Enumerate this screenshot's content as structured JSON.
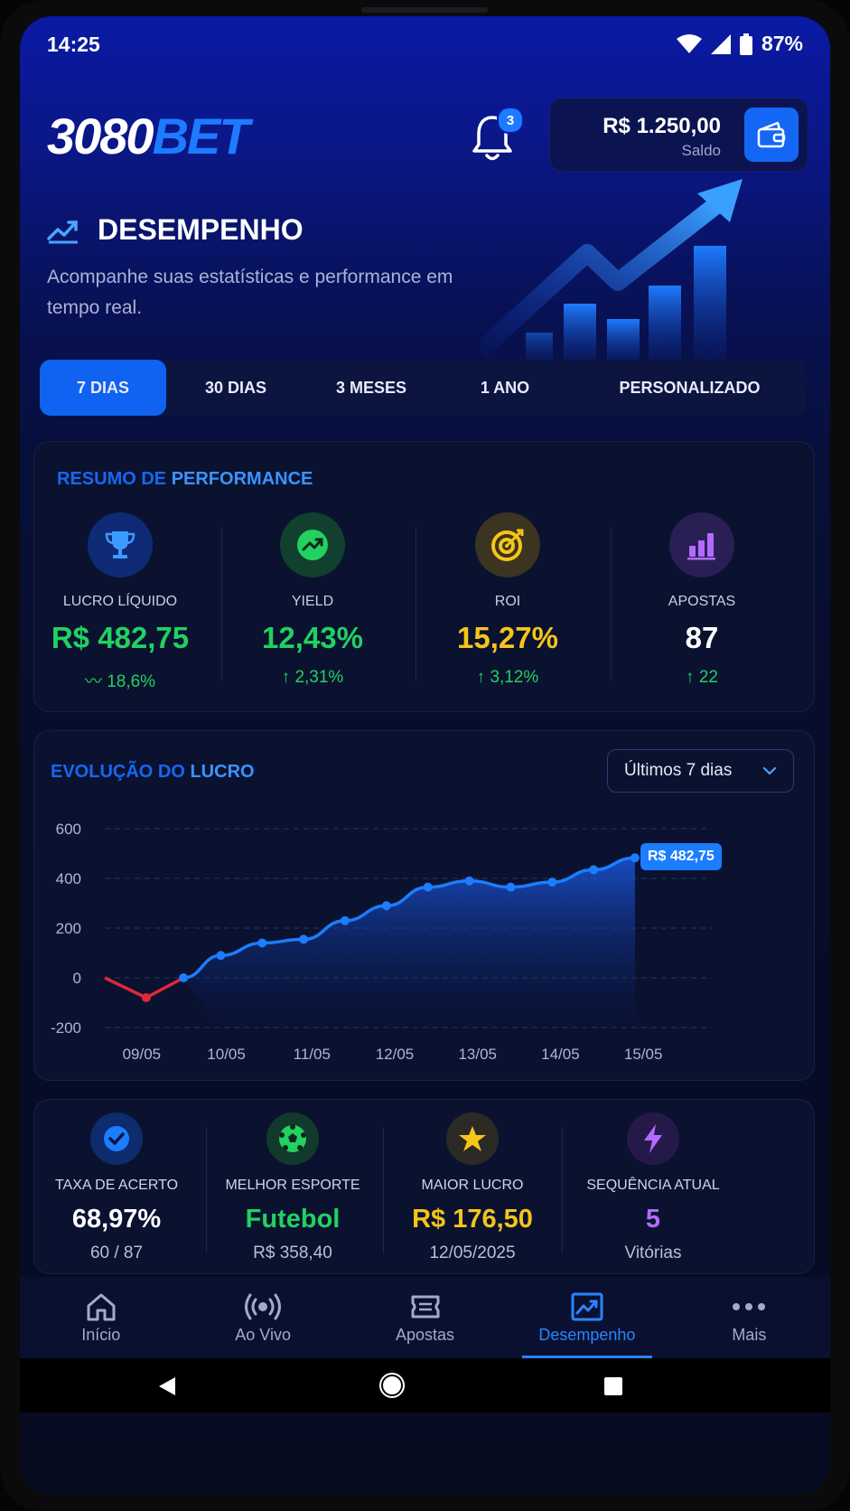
{
  "status_bar": {
    "time": "14:25",
    "battery": "87%"
  },
  "header": {
    "logo_white": "3080",
    "logo_blue": "BET",
    "notifications_count": "3",
    "balance_amount": "R$ 1.250,00",
    "balance_label": "Saldo"
  },
  "hero": {
    "title": "DESEMPENHO",
    "subtitle": "Acompanhe suas estatísticas e performance em tempo real."
  },
  "tabs": [
    {
      "label": "7 DIAS",
      "active": true
    },
    {
      "label": "30 DIAS",
      "active": false
    },
    {
      "label": "3 MESES",
      "active": false
    },
    {
      "label": "1 ANO",
      "active": false
    },
    {
      "label": "PERSONALIZADO",
      "active": false
    }
  ],
  "summary": {
    "title_a": "RESUMO DE",
    "title_b": "PERFORMANCE",
    "items": [
      {
        "label": "LUCRO LÍQUIDO",
        "value": "R$ 482,75",
        "change": "18,6%",
        "value_color": "#22d160",
        "icon": "trophy-icon"
      },
      {
        "label": "YIELD",
        "value": "12,43%",
        "change": "2,31%",
        "value_color": "#22d160",
        "icon": "trend-up-icon"
      },
      {
        "label": "ROI",
        "value": "15,27%",
        "change": "3,12%",
        "value_color": "#f5c518",
        "icon": "target-icon"
      },
      {
        "label": "APOSTAS",
        "value": "87",
        "change": "22",
        "value_color": "#ffffff",
        "icon": "bar-chart-icon"
      }
    ]
  },
  "profit_chart": {
    "title_a": "EVOLUÇÃO DO",
    "title_b": "LUCRO",
    "range_select": "Últimos 7 dias",
    "last_value_label": "R$ 482,75"
  },
  "chart_data": {
    "type": "area",
    "x_tick_labels": [
      "09/05",
      "10/05",
      "11/05",
      "12/05",
      "13/05",
      "14/05",
      "15/05"
    ],
    "y_tick_labels": [
      "600",
      "400",
      "200",
      "0",
      "-200"
    ],
    "ylim": [
      -200,
      600
    ],
    "x": [
      8.5,
      9,
      9.45,
      9.9,
      10.4,
      10.9,
      11.4,
      11.9,
      12.4,
      12.9,
      13.4,
      13.9,
      14.4,
      14.9,
      15.4
    ],
    "values": [
      0,
      -80,
      0,
      90,
      140,
      155,
      230,
      290,
      365,
      390,
      365,
      385,
      435,
      482.75,
      482.75
    ],
    "negative_color": "#e0273a",
    "positive_color": "#1c7dff",
    "grid": true
  },
  "highlights": [
    {
      "label": "TAXA DE ACERTO",
      "value": "68,97%",
      "sub": "60 / 87",
      "value_color": "#ffffff",
      "icon": "check-circle-icon",
      "icon_bg": "#0e2b6e"
    },
    {
      "label": "MELHOR ESPORTE",
      "value": "Futebol",
      "sub": "R$ 358,40",
      "value_color": "#22d160",
      "icon": "soccer-ball-icon",
      "icon_bg": "#123a2c"
    },
    {
      "label": "MAIOR LUCRO",
      "value": "R$ 176,50",
      "sub": "12/05/2025",
      "value_color": "#f5c518",
      "icon": "star-icon",
      "icon_bg": "#2b2a24"
    },
    {
      "label": "SEQUÊNCIA ATUAL",
      "value": "5",
      "sub": "Vitórias",
      "value_color": "#b36bff",
      "icon": "bolt-icon",
      "icon_bg": "#25194a"
    }
  ],
  "bottom_nav": [
    {
      "label": "Início",
      "icon": "home-icon",
      "active": false
    },
    {
      "label": "Ao Vivo",
      "icon": "live-icon",
      "active": false
    },
    {
      "label": "Apostas",
      "icon": "ticket-icon",
      "active": false
    },
    {
      "label": "Desempenho",
      "icon": "chart-icon",
      "active": true
    },
    {
      "label": "Mais",
      "icon": "more-icon",
      "active": false
    }
  ]
}
